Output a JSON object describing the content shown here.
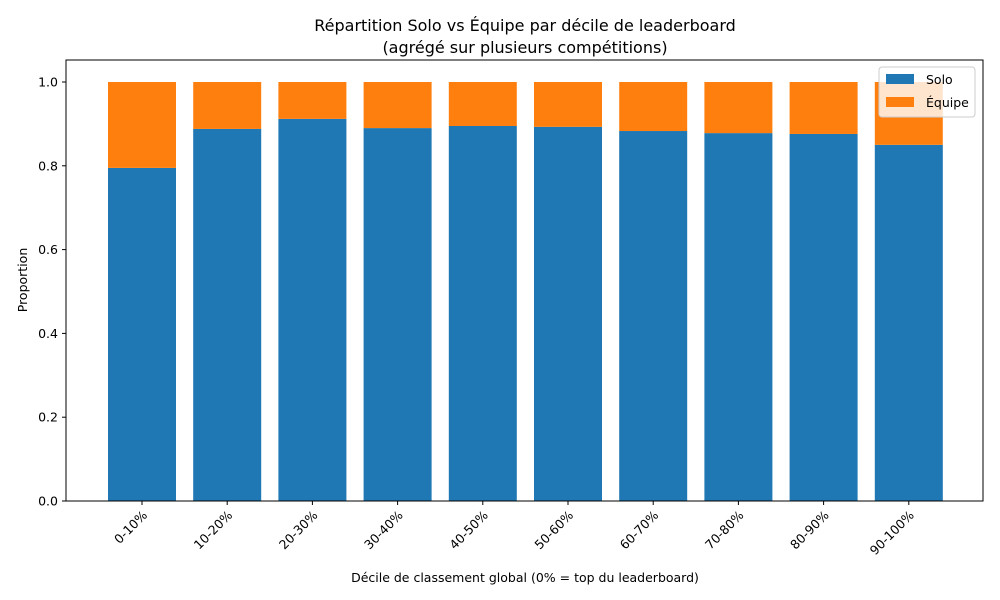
{
  "chart_data": {
    "type": "bar",
    "stacked": true,
    "title": "Répartition Solo vs Équipe par décile de leaderboard\n(agrégé sur plusieurs compétitions)",
    "title_lines": [
      "Répartition Solo vs Équipe par décile de leaderboard",
      "(agrégé sur plusieurs compétitions)"
    ],
    "xlabel": "Décile de classement global (0% = top du leaderboard)",
    "ylabel": "Proportion",
    "ylim": [
      0,
      1.05
    ],
    "yticks": [
      "0.0",
      "0.2",
      "0.4",
      "0.6",
      "0.8",
      "1.0"
    ],
    "categories": [
      "0-10%",
      "10-20%",
      "20-30%",
      "30-40%",
      "40-50%",
      "50-60%",
      "60-70%",
      "70-80%",
      "80-90%",
      "90-100%"
    ],
    "series": [
      {
        "name": "Solo",
        "color": "#1f77b4",
        "values": [
          0.795,
          0.888,
          0.912,
          0.89,
          0.895,
          0.893,
          0.883,
          0.878,
          0.876,
          0.85
        ]
      },
      {
        "name": "Équipe",
        "color": "#ff7f0e",
        "values": [
          0.205,
          0.112,
          0.088,
          0.11,
          0.105,
          0.107,
          0.117,
          0.122,
          0.124,
          0.15
        ]
      }
    ],
    "legend_position": "upper right",
    "grid": false,
    "xtick_rotation": 45
  }
}
